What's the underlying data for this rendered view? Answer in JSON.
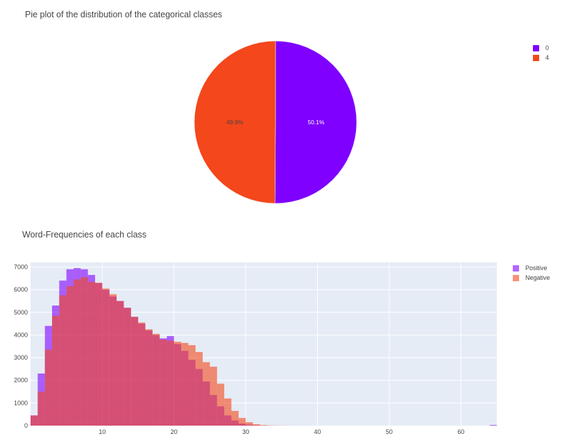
{
  "chart_data": [
    {
      "type": "pie",
      "title": "Pie plot of the distribution of the categorical classes",
      "labels": [
        "0",
        "4"
      ],
      "values": [
        50.1,
        49.9
      ],
      "slice_labels": [
        "50.1%",
        "49.9%"
      ],
      "colors": [
        "#7f00ff",
        "#f4471b"
      ],
      "legend_position": "top-right"
    },
    {
      "type": "bar",
      "title": "Word-Frequencies of each class",
      "xlabel": "",
      "ylabel": "",
      "xlim": [
        0,
        65
      ],
      "ylim": [
        0,
        7200
      ],
      "x_ticks": [
        10,
        20,
        30,
        40,
        50,
        60
      ],
      "y_ticks": [
        0,
        1000,
        2000,
        3000,
        4000,
        5000,
        6000,
        7000
      ],
      "grid": true,
      "legend_position": "top-right",
      "series": [
        {
          "name": "Positive",
          "color": "#7f00ff",
          "x_start": [
            0,
            1,
            2,
            3,
            4,
            5,
            6,
            7,
            8,
            9,
            10,
            11,
            12,
            13,
            14,
            15,
            16,
            17,
            18,
            19,
            20,
            21,
            22,
            23,
            24,
            25,
            26,
            27,
            28,
            29,
            30,
            31,
            32,
            33,
            34,
            35,
            36,
            37,
            38,
            64
          ],
          "counts": [
            450,
            2300,
            4400,
            5300,
            6400,
            6900,
            6950,
            6900,
            6650,
            6300,
            6000,
            5700,
            5500,
            5200,
            4800,
            4500,
            4200,
            4000,
            3850,
            3950,
            3600,
            3300,
            2900,
            2500,
            1950,
            1350,
            850,
            450,
            230,
            90,
            40,
            15,
            5,
            3,
            2,
            1,
            1,
            1,
            1,
            30
          ]
        },
        {
          "name": "Negative",
          "color": "#f4471b",
          "x_start": [
            0,
            1,
            2,
            3,
            4,
            5,
            6,
            7,
            8,
            9,
            10,
            11,
            12,
            13,
            14,
            15,
            16,
            17,
            18,
            19,
            20,
            21,
            22,
            23,
            24,
            25,
            26,
            27,
            28,
            29,
            30,
            31,
            32,
            33,
            34,
            35,
            36,
            37,
            38
          ],
          "counts": [
            450,
            1500,
            3350,
            4850,
            5750,
            6150,
            6450,
            6550,
            6350,
            6300,
            6050,
            5800,
            5500,
            5200,
            4800,
            4550,
            4250,
            4050,
            3800,
            3750,
            3700,
            3650,
            3550,
            3250,
            2800,
            2600,
            1850,
            1200,
            650,
            340,
            150,
            60,
            25,
            10,
            5,
            2,
            1,
            1,
            1
          ]
        }
      ]
    }
  ]
}
